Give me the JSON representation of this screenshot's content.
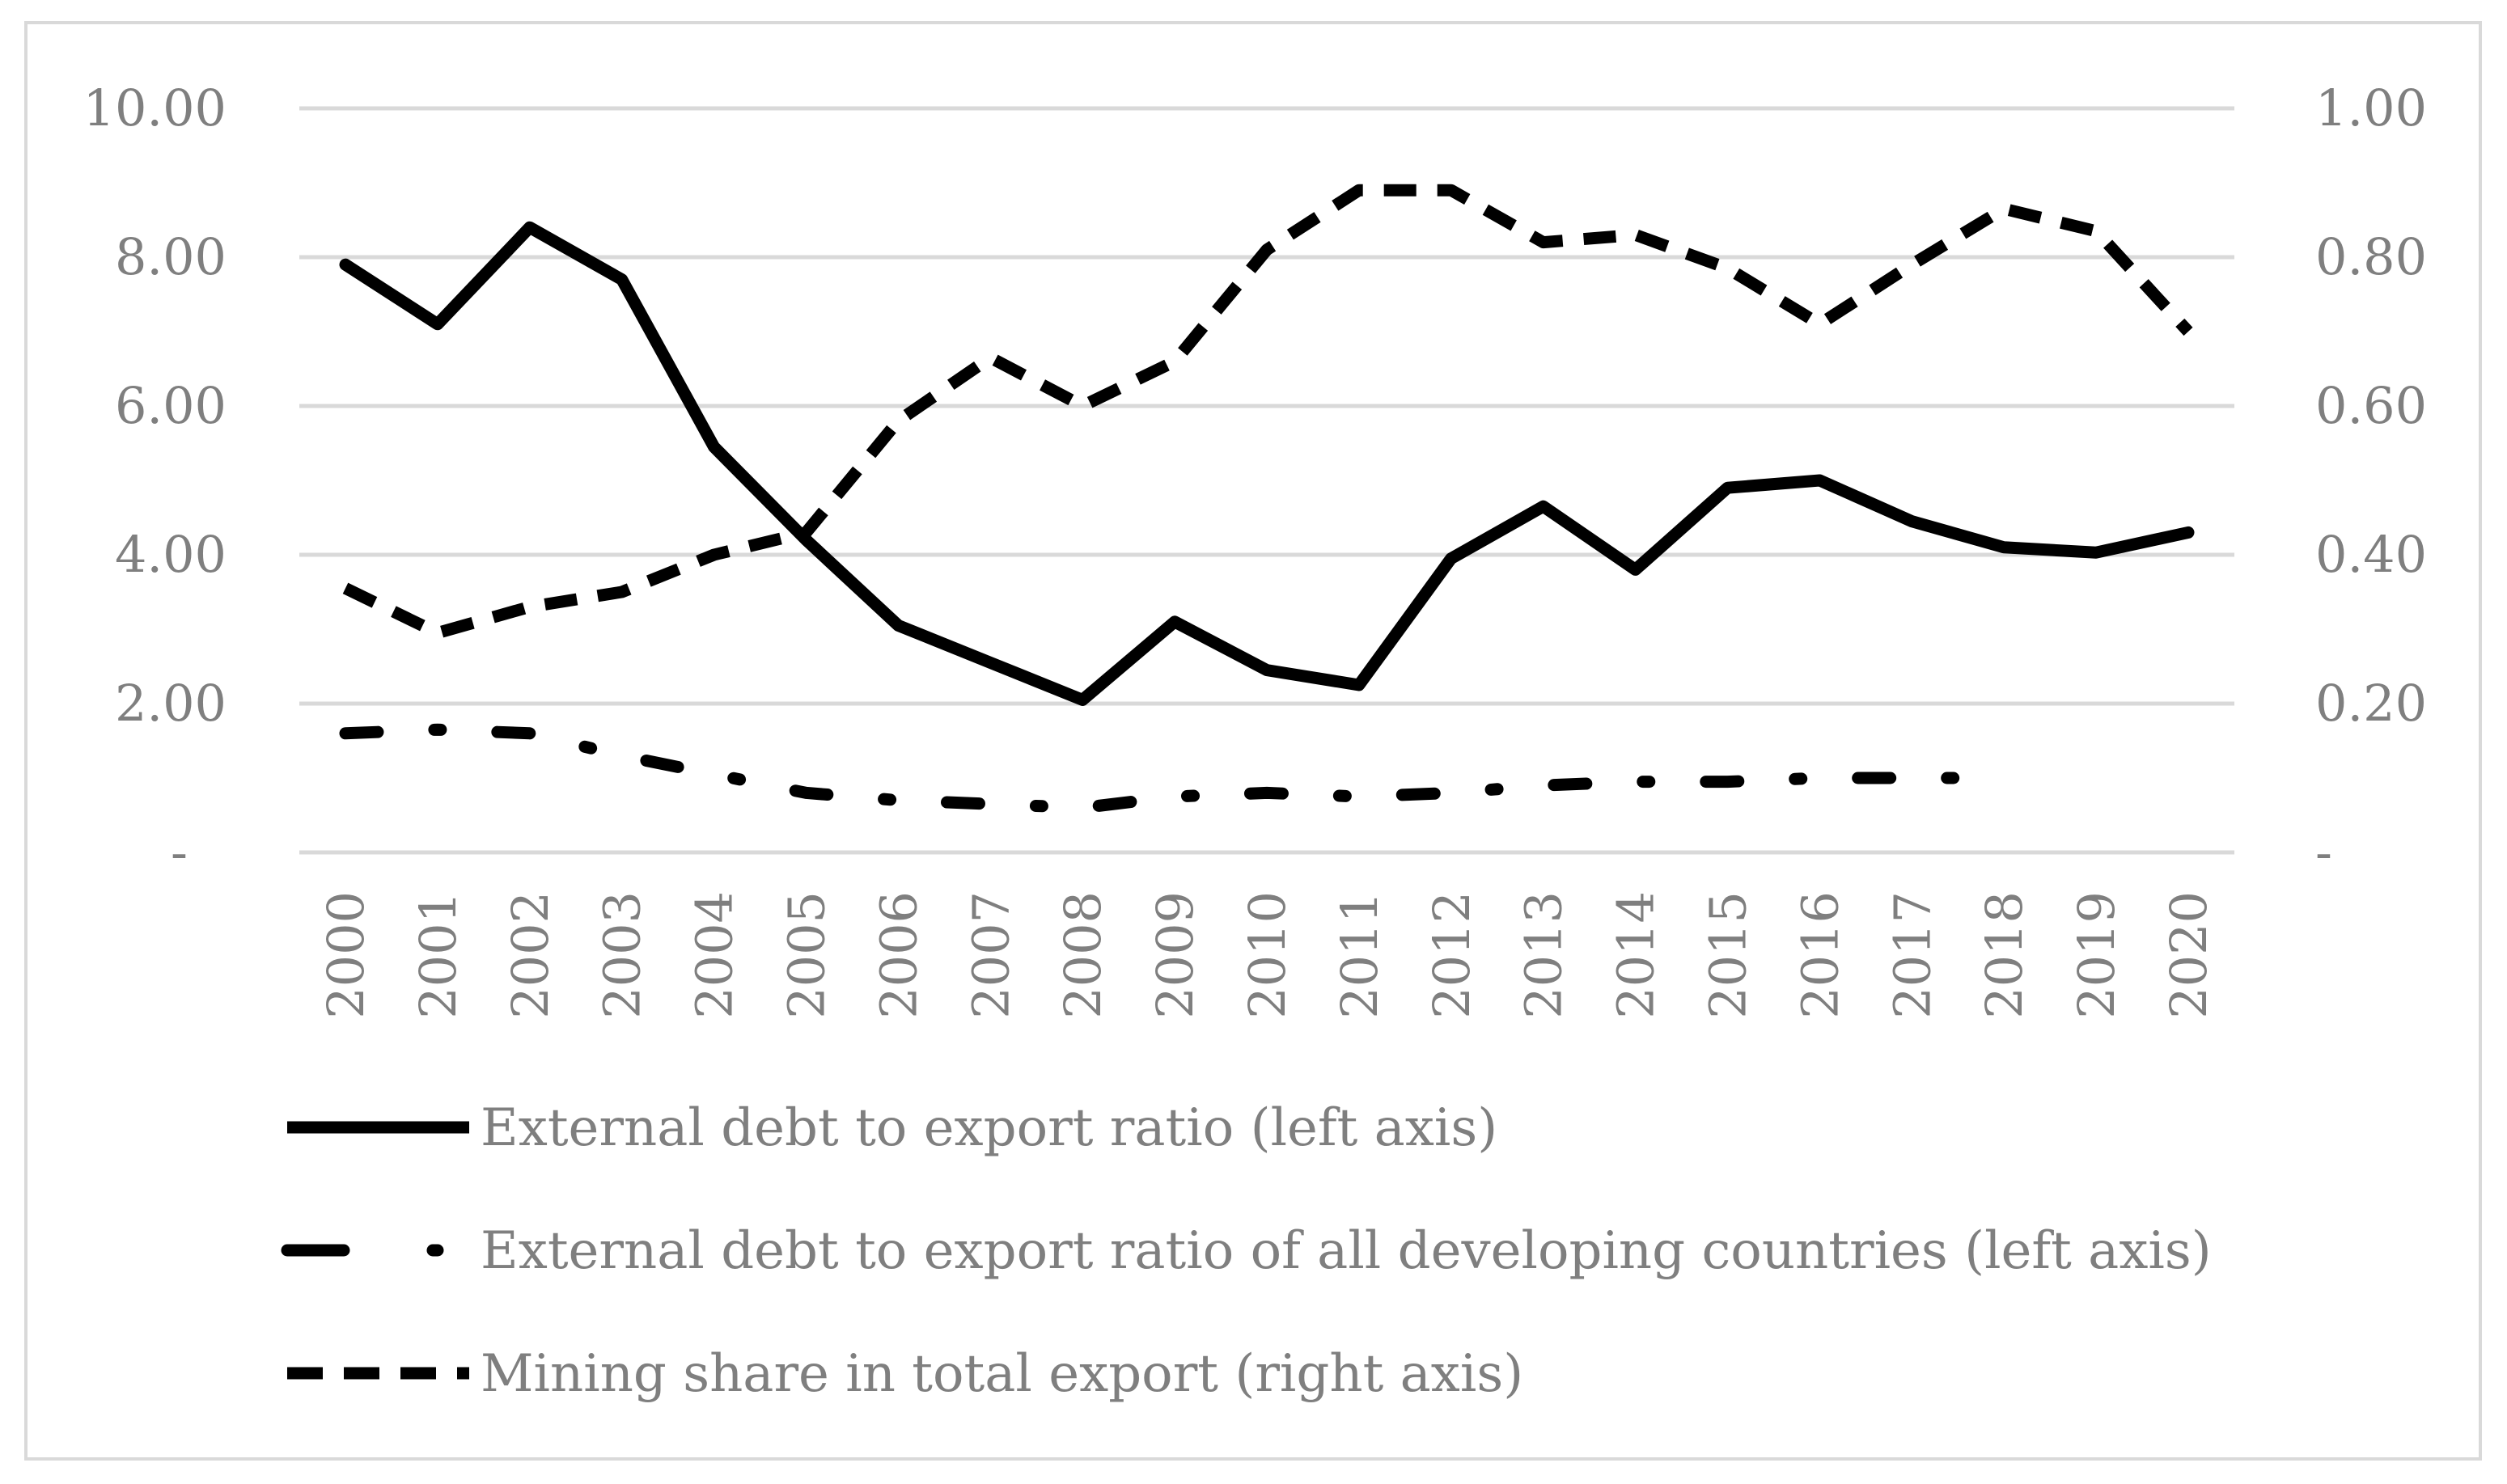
{
  "chart_data": {
    "type": "line",
    "title": "",
    "x": [
      "2000",
      "2001",
      "2002",
      "2003",
      "2004",
      "2005",
      "2006",
      "2007",
      "2008",
      "2009",
      "2010",
      "2011",
      "2012",
      "2013",
      "2014",
      "2015",
      "2016",
      "2017",
      "2018",
      "2019",
      "2020"
    ],
    "y_left": {
      "range": [
        0,
        10
      ],
      "ticks": [
        {
          "value": 0,
          "label": "-"
        },
        {
          "value": 2,
          "label": "2.00"
        },
        {
          "value": 4,
          "label": "4.00"
        },
        {
          "value": 6,
          "label": "6.00"
        },
        {
          "value": 8,
          "label": "8.00"
        },
        {
          "value": 10,
          "label": "10.00"
        }
      ]
    },
    "y_right": {
      "range": [
        0,
        1
      ],
      "ticks": [
        {
          "value": 0,
          "label": "-"
        },
        {
          "value": 0.2,
          "label": "0.20"
        },
        {
          "value": 0.4,
          "label": "0.40"
        },
        {
          "value": 0.6,
          "label": "0.60"
        },
        {
          "value": 0.8,
          "label": "0.80"
        },
        {
          "value": 1.0,
          "label": "1.00"
        }
      ]
    },
    "grid": true,
    "legend_position": "bottom",
    "series": [
      {
        "name": "External debt to export ratio (left axis)",
        "axis": "left",
        "style": "solid",
        "color": "#000000",
        "values": [
          7.9,
          7.1,
          8.4,
          7.7,
          5.45,
          4.2,
          3.05,
          2.55,
          2.05,
          3.1,
          2.45,
          2.25,
          3.95,
          4.65,
          3.8,
          4.9,
          5.0,
          4.45,
          4.1,
          4.03,
          4.3
        ]
      },
      {
        "name": "External debt to export ratio of all developing countries (left axis)",
        "axis": "left",
        "style": "dashdot",
        "color": "#000000",
        "values": [
          1.6,
          1.65,
          1.6,
          1.3,
          1.05,
          0.8,
          0.7,
          0.65,
          0.6,
          0.75,
          0.8,
          0.75,
          0.8,
          0.9,
          0.95,
          0.95,
          1.0,
          1.0,
          1.0,
          null,
          null
        ]
      },
      {
        "name": "Mining share in total export (right axis)",
        "axis": "right",
        "style": "dashed",
        "color": "#000000",
        "values": [
          0.355,
          0.295,
          0.33,
          0.35,
          0.4,
          0.43,
          0.58,
          0.665,
          0.6,
          0.66,
          0.81,
          0.89,
          0.89,
          0.82,
          0.83,
          0.785,
          0.71,
          0.79,
          0.865,
          0.835,
          0.7
        ]
      }
    ],
    "colors": {
      "grid": "#d9d9d9",
      "text": "#7f7f7f",
      "frame": "#d9d9d9"
    }
  }
}
